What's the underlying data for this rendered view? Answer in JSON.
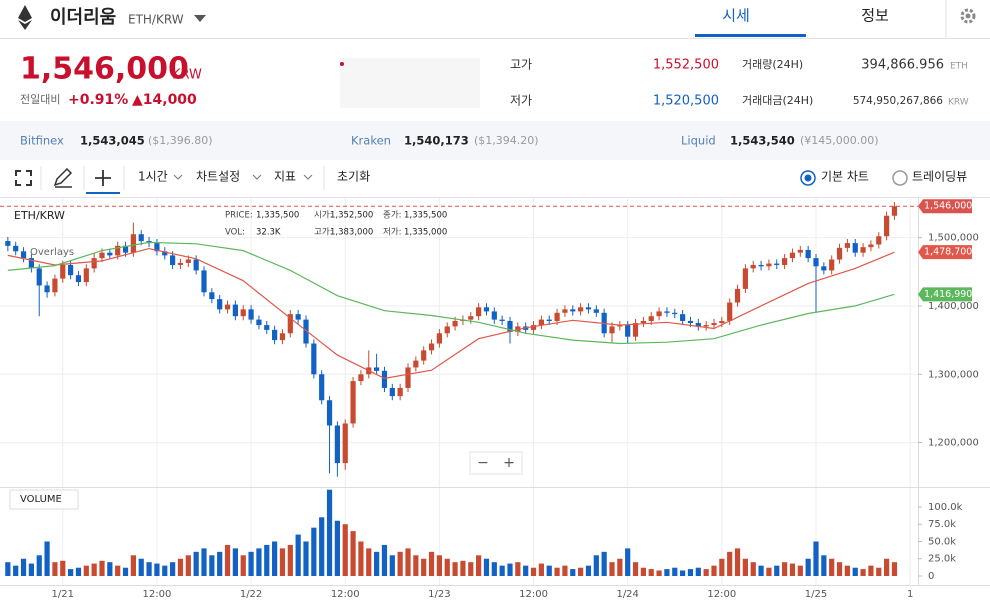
{
  "header": {
    "title": "이더리움",
    "pair": "ETH/KRW",
    "tabs": [
      "시세",
      "정보"
    ]
  },
  "price": {
    "value": "1,546,000",
    "unit": "KRW",
    "change_label": "전일대비",
    "change_percent": "+0.91%",
    "change_amount": "▲14,000"
  },
  "stats": [
    {
      "label": "고가",
      "value": "1,552,500"
    },
    {
      "label": "저가",
      "value": "1,520,500"
    },
    {
      "label": "거래량(24H)",
      "value": "394,866.956",
      "unit": "ETH"
    },
    {
      "label": "거래대금(24H)",
      "value": "574,950,267,866",
      "unit": "KRW"
    }
  ],
  "exchanges": [
    {
      "name": "Bitfinex",
      "price": "1,543,045",
      "foreign": "($1,396.80)"
    },
    {
      "name": "Kraken",
      "price": "1,540,173",
      "foreign": "($1,394.20)"
    },
    {
      "name": "Liquid",
      "price": "1,543,540",
      "foreign": "(¥145,000.00)"
    }
  ],
  "toolbar": {
    "interval": "1시간",
    "menus": [
      "차트설정",
      "지표",
      "초기화"
    ],
    "chart_types": [
      "기본 차트",
      "트레이딩뷰"
    ],
    "zoom": [
      "−",
      "+"
    ]
  },
  "chart_data": {
    "type": "candlestick",
    "title": "ETH/KRW",
    "overlays_label": "Overlays",
    "volume_label": "VOLUME",
    "info": [
      {
        "label": "PRICE:",
        "value": "1,335,500"
      },
      {
        "label": "시가:",
        "value": "1,352,500"
      },
      {
        "label": "종가:",
        "value": "1,335,500"
      },
      {
        "label": "VOL:",
        "value": "32.3K"
      },
      {
        "label": "고가:",
        "value": "1,383,000"
      },
      {
        "label": "저가:",
        "value": "1,335,000"
      }
    ],
    "up_color": "#c84a31",
    "down_color": "#1261c4",
    "xlim": [
      -1,
      116
    ],
    "xticks": [
      {
        "value": 7,
        "label": "1/21"
      },
      {
        "value": 19,
        "label": "12:00"
      },
      {
        "value": 31,
        "label": "1/22"
      },
      {
        "value": 43,
        "label": "12:00"
      },
      {
        "value": 55,
        "label": "1/23"
      },
      {
        "value": 67,
        "label": "12:00"
      },
      {
        "value": 79,
        "label": "1/24"
      },
      {
        "value": 91,
        "label": "12:00"
      },
      {
        "value": 103,
        "label": "1/25"
      },
      {
        "value": 115,
        "label": "1"
      }
    ],
    "ylim": [
      1135000,
      1558000
    ],
    "yticks": [
      {
        "value": 1200000,
        "label": "1,200,000"
      },
      {
        "value": 1300000,
        "label": "1,300,000"
      },
      {
        "value": 1400000,
        "label": "1,400,000"
      },
      {
        "value": 1500000,
        "label": "1,500,000"
      }
    ],
    "open": [
      1495000,
      1488000,
      1480000,
      1470000,
      1455000,
      1430000,
      1420000,
      1440000,
      1460000,
      1445000,
      1435000,
      1455000,
      1470000,
      1478000,
      1474000,
      1488000,
      1478000,
      1505000,
      1495000,
      1492000,
      1480000,
      1474000,
      1460000,
      1463000,
      1468000,
      1452000,
      1420000,
      1410000,
      1395000,
      1402000,
      1385000,
      1395000,
      1380000,
      1372000,
      1365000,
      1350000,
      1360000,
      1388000,
      1380000,
      1345000,
      1300000,
      1262000,
      1225000,
      1170000,
      1228000,
      1290000,
      1300000,
      1310000,
      1305000,
      1280000,
      1268000,
      1280000,
      1310000,
      1320000,
      1335000,
      1345000,
      1360000,
      1370000,
      1378000,
      1380000,
      1385000,
      1398000,
      1392000,
      1380000,
      1378000,
      1362000,
      1370000,
      1365000,
      1372000,
      1380000,
      1378000,
      1390000,
      1395000,
      1392000,
      1398000,
      1395000,
      1390000,
      1360000,
      1370000,
      1372000,
      1355000,
      1375000,
      1378000,
      1385000,
      1392000,
      1390000,
      1388000,
      1378000,
      1375000,
      1370000,
      1372000,
      1375000,
      1378000,
      1405000,
      1425000,
      1455000,
      1460000,
      1458000,
      1462000,
      1460000,
      1470000,
      1478000,
      1482000,
      1470000,
      1458000,
      1452000,
      1468000,
      1485000,
      1492000,
      1478000,
      1486000,
      1490000,
      1502000,
      1532000
    ],
    "high": [
      1501000,
      1494000,
      1486000,
      1476000,
      1461000,
      1436000,
      1446000,
      1466000,
      1466000,
      1451000,
      1461000,
      1478000,
      1484000,
      1484000,
      1494000,
      1494000,
      1522000,
      1511000,
      1501000,
      1498000,
      1486000,
      1480000,
      1469000,
      1474000,
      1474000,
      1458000,
      1426000,
      1416000,
      1408000,
      1408000,
      1401000,
      1401000,
      1386000,
      1378000,
      1371000,
      1366000,
      1394000,
      1394000,
      1386000,
      1351000,
      1306000,
      1268000,
      1231000,
      1234000,
      1296000,
      1306000,
      1335000,
      1330000,
      1311000,
      1286000,
      1286000,
      1316000,
      1326000,
      1341000,
      1351000,
      1366000,
      1376000,
      1384000,
      1386000,
      1391000,
      1404000,
      1404000,
      1398000,
      1386000,
      1384000,
      1376000,
      1376000,
      1378000,
      1386000,
      1386000,
      1396000,
      1401000,
      1401000,
      1404000,
      1404000,
      1401000,
      1396000,
      1376000,
      1378000,
      1378000,
      1381000,
      1384000,
      1391000,
      1398000,
      1398000,
      1396000,
      1394000,
      1384000,
      1381000,
      1378000,
      1381000,
      1384000,
      1411000,
      1431000,
      1461000,
      1466000,
      1466000,
      1468000,
      1468000,
      1476000,
      1484000,
      1488000,
      1488000,
      1476000,
      1464000,
      1474000,
      1491000,
      1498000,
      1498000,
      1492000,
      1496000,
      1508000,
      1538000,
      1552000
    ],
    "low": [
      1480000,
      1474000,
      1464000,
      1449000,
      1385000,
      1412000,
      1414000,
      1434000,
      1439000,
      1429000,
      1429000,
      1449000,
      1464000,
      1468000,
      1468000,
      1472000,
      1472000,
      1489000,
      1486000,
      1474000,
      1468000,
      1454000,
      1454000,
      1457000,
      1446000,
      1414000,
      1404000,
      1389000,
      1389000,
      1379000,
      1379000,
      1374000,
      1366000,
      1359000,
      1344000,
      1344000,
      1354000,
      1374000,
      1339000,
      1294000,
      1256000,
      1155000,
      1150000,
      1160000,
      1222000,
      1284000,
      1294000,
      1299000,
      1274000,
      1262000,
      1262000,
      1274000,
      1304000,
      1314000,
      1329000,
      1339000,
      1354000,
      1364000,
      1372000,
      1374000,
      1379000,
      1386000,
      1374000,
      1372000,
      1345000,
      1356000,
      1359000,
      1359000,
      1366000,
      1372000,
      1372000,
      1384000,
      1386000,
      1386000,
      1389000,
      1384000,
      1354000,
      1345000,
      1364000,
      1345000,
      1349000,
      1369000,
      1372000,
      1379000,
      1384000,
      1382000,
      1372000,
      1369000,
      1364000,
      1364000,
      1366000,
      1369000,
      1372000,
      1399000,
      1419000,
      1449000,
      1452000,
      1452000,
      1454000,
      1454000,
      1464000,
      1472000,
      1464000,
      1390000,
      1446000,
      1446000,
      1462000,
      1479000,
      1472000,
      1472000,
      1480000,
      1484000,
      1496000,
      1526000
    ],
    "close": [
      1488000,
      1480000,
      1470000,
      1455000,
      1430000,
      1420000,
      1440000,
      1460000,
      1445000,
      1435000,
      1455000,
      1470000,
      1478000,
      1474000,
      1488000,
      1478000,
      1505000,
      1495000,
      1492000,
      1480000,
      1474000,
      1460000,
      1463000,
      1468000,
      1452000,
      1420000,
      1410000,
      1395000,
      1402000,
      1385000,
      1395000,
      1380000,
      1372000,
      1365000,
      1350000,
      1360000,
      1388000,
      1380000,
      1345000,
      1300000,
      1262000,
      1225000,
      1170000,
      1228000,
      1290000,
      1300000,
      1310000,
      1305000,
      1280000,
      1268000,
      1280000,
      1310000,
      1320000,
      1335000,
      1345000,
      1360000,
      1370000,
      1378000,
      1380000,
      1385000,
      1398000,
      1392000,
      1380000,
      1378000,
      1362000,
      1370000,
      1365000,
      1372000,
      1380000,
      1378000,
      1390000,
      1395000,
      1392000,
      1398000,
      1395000,
      1390000,
      1360000,
      1370000,
      1372000,
      1355000,
      1375000,
      1378000,
      1385000,
      1392000,
      1390000,
      1388000,
      1378000,
      1375000,
      1370000,
      1372000,
      1375000,
      1378000,
      1405000,
      1425000,
      1455000,
      1460000,
      1458000,
      1462000,
      1460000,
      1470000,
      1478000,
      1482000,
      1470000,
      1458000,
      1452000,
      1468000,
      1485000,
      1492000,
      1478000,
      1486000,
      1490000,
      1502000,
      1532000,
      1546000
    ],
    "volume": [
      20000,
      15000,
      25000,
      18000,
      30000,
      50000,
      20000,
      22000,
      10000,
      12000,
      15000,
      18000,
      22000,
      20000,
      15000,
      12000,
      30000,
      25000,
      20000,
      18000,
      15000,
      20000,
      25000,
      30000,
      35000,
      40000,
      30000,
      35000,
      45000,
      40000,
      30000,
      35000,
      40000,
      45000,
      50000,
      40000,
      45000,
      60000,
      50000,
      70000,
      85000,
      125000,
      80000,
      75000,
      65000,
      50000,
      40000,
      35000,
      45000,
      30000,
      35000,
      40000,
      30000,
      25000,
      35000,
      30000,
      25000,
      20000,
      22000,
      20000,
      30000,
      25000,
      20000,
      15000,
      18000,
      20000,
      15000,
      12000,
      18000,
      15000,
      12000,
      15000,
      10000,
      12000,
      15000,
      30000,
      35000,
      20000,
      25000,
      40000,
      20000,
      12000,
      10000,
      8000,
      10000,
      12000,
      8000,
      10000,
      12000,
      10000,
      15000,
      25000,
      35000,
      40000,
      25000,
      20000,
      15000,
      12000,
      15000,
      20000,
      18000,
      15000,
      25000,
      50000,
      30000,
      25000,
      20000,
      15000,
      12000,
      10000,
      15000,
      12000,
      25000,
      20000
    ],
    "volume_ylim": [
      0,
      126000
    ],
    "volume_yticks": [
      0,
      {
        "value": 25000,
        "label": "25.0k"
      },
      {
        "value": 50000,
        "label": "50.0k"
      },
      {
        "value": 75000,
        "label": "75.0k"
      },
      {
        "value": 100000,
        "label": "100.0k"
      }
    ],
    "last_price": {
      "value": 1546000,
      "label": "1,546,000",
      "color": "#d9534f"
    },
    "moving_averages": [
      {
        "color": "#e0584a",
        "x": [
          0,
          6,
          12,
          18,
          24,
          30,
          36,
          42,
          48,
          54,
          60,
          66,
          72,
          78,
          84,
          90,
          96,
          102,
          108,
          113
        ],
        "values": [
          1474000,
          1460000,
          1466000,
          1484000,
          1469000,
          1437000,
          1382000,
          1328000,
          1294000,
          1306000,
          1352000,
          1368000,
          1379000,
          1372000,
          1376000,
          1367000,
          1400000,
          1433000,
          1455000,
          1478700
        ],
        "end_label": {
          "value": 1478700,
          "label": "1,478,700"
        }
      },
      {
        "color": "#5cb85c",
        "x": [
          0,
          6,
          12,
          18,
          24,
          30,
          36,
          42,
          48,
          54,
          60,
          66,
          72,
          78,
          84,
          90,
          96,
          102,
          108,
          113
        ],
        "values": [
          1452000,
          1459000,
          1481000,
          1493000,
          1491000,
          1481000,
          1452000,
          1415000,
          1393000,
          1386000,
          1376000,
          1360000,
          1350000,
          1345000,
          1347000,
          1352000,
          1372000,
          1389000,
          1400000,
          1416990
        ],
        "end_label": {
          "value": 1416990,
          "label": "1,416,990"
        }
      }
    ]
  }
}
